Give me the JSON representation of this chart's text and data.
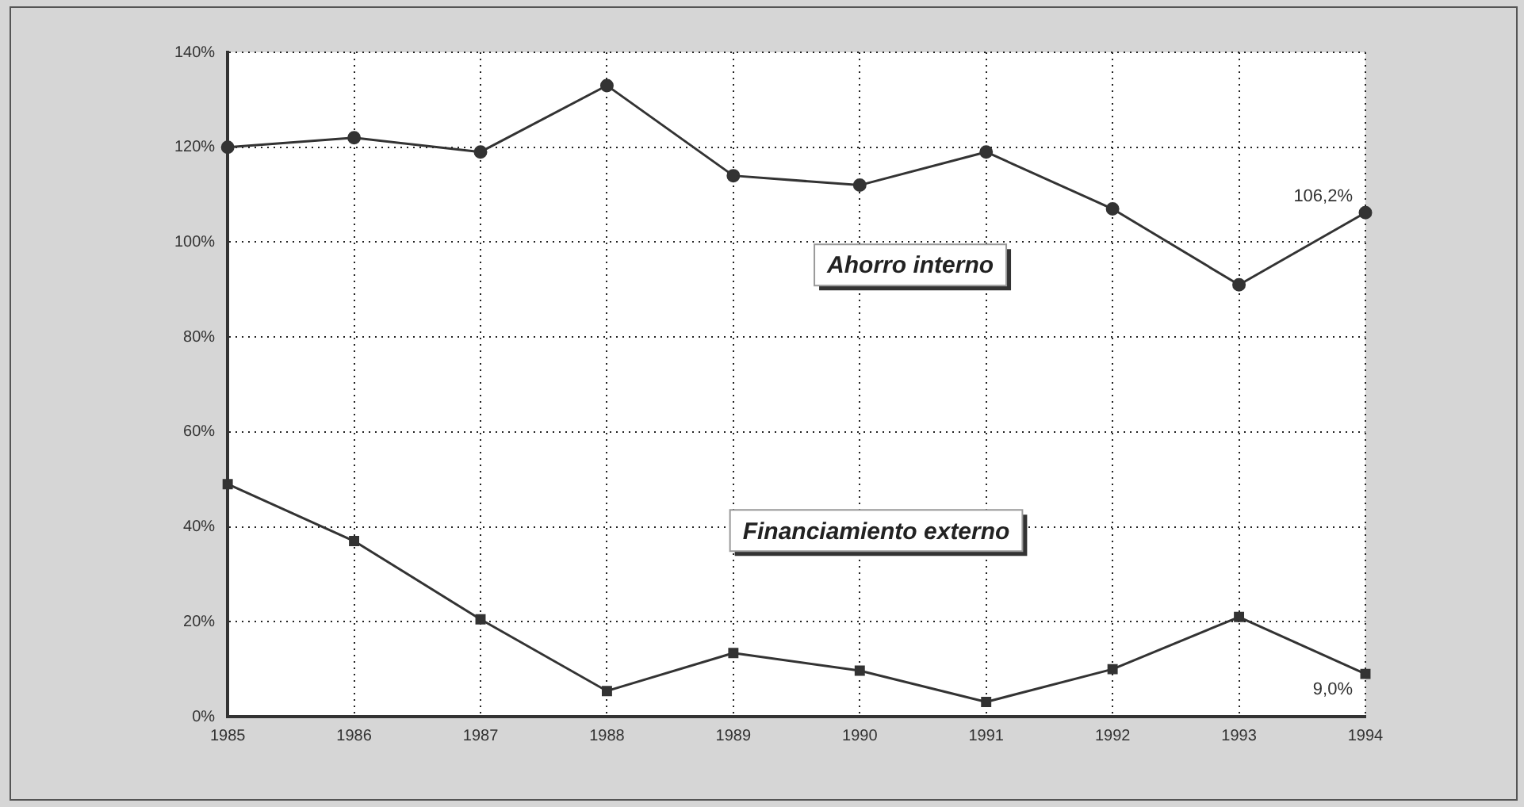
{
  "chart_data": {
    "type": "line",
    "categories": [
      "1985",
      "1986",
      "1987",
      "1988",
      "1989",
      "1990",
      "1991",
      "1992",
      "1993",
      "1994"
    ],
    "series": [
      {
        "name": "Ahorro interno",
        "color": "#333333",
        "marker": "circle",
        "values": [
          120,
          122,
          119,
          133,
          114,
          112,
          119,
          107,
          91,
          106.2
        ],
        "value_labels": [
          null,
          null,
          null,
          null,
          null,
          null,
          null,
          null,
          null,
          "106,2%"
        ]
      },
      {
        "name": "Financiamiento externo",
        "color": "#333333",
        "marker": "square",
        "values": [
          49,
          37,
          20.5,
          5.4,
          13.4,
          9.7,
          3.1,
          10,
          21,
          9.0
        ],
        "value_labels": [
          null,
          null,
          null,
          null,
          null,
          null,
          null,
          null,
          null,
          "9,0%"
        ]
      }
    ],
    "ylim": [
      0,
      140
    ],
    "yticks": [
      {
        "value": 0,
        "label": "0%"
      },
      {
        "value": 20,
        "label": "20%"
      },
      {
        "value": 40,
        "label": "40%"
      },
      {
        "value": 60,
        "label": "60%"
      },
      {
        "value": 80,
        "label": "80%"
      },
      {
        "value": 100,
        "label": "100%"
      },
      {
        "value": 120,
        "label": "120%"
      },
      {
        "value": 140,
        "label": "140%"
      }
    ],
    "grid": true,
    "legend": false,
    "line_style": "solid"
  }
}
